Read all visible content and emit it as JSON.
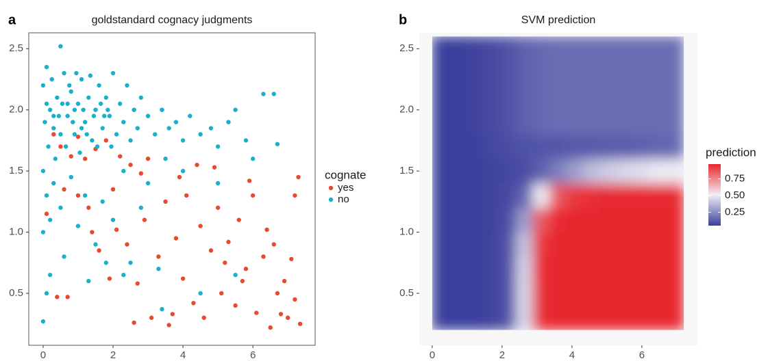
{
  "chart_data": [
    {
      "type": "scatter",
      "panel_label": "a",
      "title": "goldstandard cognacy judgments",
      "legend_title": "cognate",
      "xlim": [
        -0.41,
        7.78
      ],
      "ylim": [
        0.075,
        2.63
      ],
      "xticks": [
        0,
        2,
        4,
        6
      ],
      "yticks": [
        0.5,
        {
          "value": 1.0,
          "label": "1.0"
        },
        1.5,
        {
          "value": 2.0,
          "label": "2.0"
        },
        2.5
      ],
      "series": [
        {
          "name": "yes",
          "color": "#e8492f",
          "x": [
            0.3,
            0.5,
            0.8,
            1.0,
            1.2,
            1.5,
            1.8,
            2.2,
            2.5,
            2.8,
            3.0,
            0.1,
            0.4,
            0.7,
            1.0,
            1.3,
            1.6,
            1.9,
            2.1,
            2.4,
            2.6,
            2.7,
            2.9,
            3.1,
            3.3,
            3.5,
            3.6,
            3.8,
            4.0,
            4.1,
            4.3,
            4.5,
            4.6,
            4.8,
            5.0,
            5.1,
            5.3,
            5.5,
            5.6,
            5.8,
            6.0,
            6.1,
            6.3,
            6.4,
            6.5,
            6.7,
            6.9,
            7.0,
            7.1,
            7.2,
            7.3,
            7.2,
            7.35,
            6.8,
            5.9,
            4.9,
            3.9,
            2.0,
            1.4,
            0.6,
            3.7,
            5.2,
            6.6,
            4.4,
            5.7
          ],
          "values": [
            1.8,
            1.7,
            1.62,
            1.78,
            1.6,
            1.68,
            1.75,
            1.62,
            1.55,
            1.48,
            1.6,
            1.15,
            0.47,
            0.47,
            1.3,
            1.2,
            0.85,
            0.62,
            1.02,
            0.9,
            0.26,
            0.58,
            1.1,
            0.3,
            0.8,
            1.25,
            0.24,
            0.95,
            0.62,
            1.3,
            0.42,
            1.05,
            0.3,
            0.85,
            1.2,
            0.5,
            0.92,
            0.4,
            1.1,
            0.7,
            1.3,
            0.34,
            0.8,
            1.02,
            0.22,
            0.5,
            0.6,
            0.3,
            0.78,
            1.3,
            1.45,
            0.45,
            0.25,
            0.33,
            1.42,
            1.53,
            1.45,
            1.35,
            1.0,
            1.35,
            0.33,
            0.75,
            0.9,
            1.55,
            0.6
          ]
        },
        {
          "name": "no",
          "color": "#1ab0cc",
          "x": [
            0.0,
            0.1,
            0.2,
            0.3,
            0.4,
            0.5,
            0.6,
            0.7,
            0.8,
            0.9,
            1.0,
            1.1,
            1.2,
            1.3,
            1.4,
            1.5,
            1.6,
            1.7,
            1.8,
            1.9,
            2.0,
            2.1,
            2.2,
            2.3,
            2.4,
            2.5,
            2.6,
            2.7,
            2.8,
            3.0,
            3.2,
            3.4,
            3.6,
            3.8,
            4.0,
            4.2,
            4.5,
            4.8,
            5.0,
            5.3,
            5.5,
            5.8,
            6.0,
            6.3,
            6.6,
            6.7,
            0.05,
            0.15,
            0.25,
            0.35,
            0.45,
            0.55,
            0.65,
            0.75,
            0.85,
            0.95,
            1.05,
            1.15,
            1.25,
            1.35,
            1.45,
            1.55,
            1.65,
            1.75,
            1.85,
            1.95,
            0.1,
            0.3,
            0.5,
            0.7,
            0.9,
            1.1,
            0.0,
            0.1,
            0.2,
            0.0,
            0.3,
            0.5,
            0.6,
            0.8,
            1.0,
            1.2,
            1.5,
            1.7,
            2.0,
            2.3,
            2.5,
            2.8,
            3.0,
            3.3,
            3.5,
            4.0,
            4.5,
            5.0,
            5.5,
            0.1,
            0.2,
            0.0,
            1.3,
            1.8,
            2.3,
            3.4
          ],
          "values": [
            2.2,
            2.35,
            2.0,
            1.85,
            2.1,
            2.52,
            2.3,
            1.95,
            2.15,
            1.8,
            2.05,
            2.25,
            1.9,
            2.1,
            1.75,
            2.0,
            2.2,
            1.85,
            2.1,
            1.95,
            2.3,
            1.8,
            2.05,
            1.9,
            2.2,
            1.75,
            2.0,
            1.85,
            2.1,
            1.95,
            1.8,
            2.0,
            1.85,
            1.9,
            1.75,
            1.95,
            1.8,
            1.85,
            1.7,
            1.9,
            2.0,
            1.75,
            1.6,
            2.13,
            2.13,
            1.72,
            1.9,
            1.7,
            2.25,
            1.6,
            1.95,
            2.05,
            1.7,
            2.2,
            1.9,
            2.3,
            1.65,
            2.0,
            1.8,
            2.28,
            1.95,
            1.7,
            2.05,
            1.95,
            2.0,
            1.7,
            2.05,
            1.95,
            1.8,
            2.05,
            2.0,
            1.85,
            1.5,
            1.3,
            1.1,
            1.0,
            1.4,
            1.2,
            0.8,
            1.45,
            1.05,
            1.3,
            0.9,
            1.25,
            1.1,
            1.5,
            0.75,
            1.2,
            1.4,
            0.7,
            1.6,
            1.5,
            0.5,
            1.4,
            0.65,
            0.5,
            0.65,
            0.27,
            0.6,
            0.75,
            0.65,
            0.37
          ]
        }
      ]
    },
    {
      "type": "heatmap",
      "panel_label": "b",
      "title": "SVM prediction",
      "legend_title": "prediction",
      "xlim": [
        -0.37,
        7.59
      ],
      "ylim": [
        0.075,
        2.63
      ],
      "xticks": [
        0,
        2,
        4,
        6
      ],
      "yticks": [
        0.5,
        {
          "value": 1.0,
          "label": "1.0"
        },
        1.5,
        {
          "value": 2.0,
          "label": "2.0"
        },
        2.5
      ],
      "colors": [
        "#3b3f9c",
        "#f0eef6",
        "#e8262d"
      ],
      "zlim": [
        0.05,
        0.97
      ],
      "zticks": [
        {
          "value": 0.25,
          "label": "0.25"
        },
        {
          "value": 0.5,
          "label": "0.50"
        },
        {
          "value": 0.75,
          "label": "0.75"
        }
      ],
      "x": [
        0.24,
        0.72,
        1.2,
        1.68,
        2.16,
        2.64,
        3.12,
        3.6,
        4.08,
        4.56,
        5.04,
        5.52,
        6.0,
        6.48,
        6.96
      ],
      "y": [
        0.3,
        0.5,
        0.7,
        0.9,
        1.1,
        1.3,
        1.5,
        1.7,
        1.9,
        2.1,
        2.3,
        2.5
      ],
      "z": [
        [
          0.05,
          0.05,
          0.05,
          0.06,
          0.1,
          0.45,
          0.95,
          0.97,
          0.97,
          0.97,
          0.97,
          0.97,
          0.97,
          0.97,
          0.97
        ],
        [
          0.05,
          0.05,
          0.05,
          0.06,
          0.1,
          0.45,
          0.95,
          0.97,
          0.97,
          0.97,
          0.97,
          0.97,
          0.97,
          0.97,
          0.97
        ],
        [
          0.05,
          0.05,
          0.05,
          0.06,
          0.1,
          0.44,
          0.95,
          0.97,
          0.97,
          0.97,
          0.97,
          0.97,
          0.97,
          0.97,
          0.97
        ],
        [
          0.05,
          0.05,
          0.05,
          0.06,
          0.1,
          0.4,
          0.93,
          0.97,
          0.97,
          0.97,
          0.97,
          0.97,
          0.97,
          0.97,
          0.97
        ],
        [
          0.05,
          0.05,
          0.05,
          0.06,
          0.09,
          0.3,
          0.85,
          0.96,
          0.97,
          0.97,
          0.97,
          0.97,
          0.97,
          0.97,
          0.97
        ],
        [
          0.05,
          0.05,
          0.05,
          0.06,
          0.08,
          0.15,
          0.5,
          0.85,
          0.93,
          0.95,
          0.96,
          0.96,
          0.96,
          0.96,
          0.96
        ],
        [
          0.05,
          0.05,
          0.05,
          0.06,
          0.07,
          0.09,
          0.14,
          0.22,
          0.3,
          0.38,
          0.42,
          0.45,
          0.47,
          0.5,
          0.5
        ],
        [
          0.05,
          0.05,
          0.05,
          0.07,
          0.09,
          0.1,
          0.11,
          0.11,
          0.12,
          0.12,
          0.13,
          0.13,
          0.14,
          0.15,
          0.16
        ],
        [
          0.05,
          0.05,
          0.06,
          0.08,
          0.1,
          0.14,
          0.16,
          0.17,
          0.17,
          0.17,
          0.17,
          0.17,
          0.17,
          0.17,
          0.17
        ],
        [
          0.05,
          0.05,
          0.06,
          0.08,
          0.1,
          0.14,
          0.16,
          0.17,
          0.17,
          0.17,
          0.17,
          0.17,
          0.17,
          0.17,
          0.17
        ],
        [
          0.05,
          0.05,
          0.06,
          0.08,
          0.1,
          0.14,
          0.16,
          0.17,
          0.17,
          0.17,
          0.17,
          0.17,
          0.17,
          0.17,
          0.17
        ],
        [
          0.05,
          0.05,
          0.06,
          0.08,
          0.1,
          0.14,
          0.16,
          0.17,
          0.17,
          0.17,
          0.17,
          0.17,
          0.17,
          0.17,
          0.17
        ]
      ]
    }
  ]
}
